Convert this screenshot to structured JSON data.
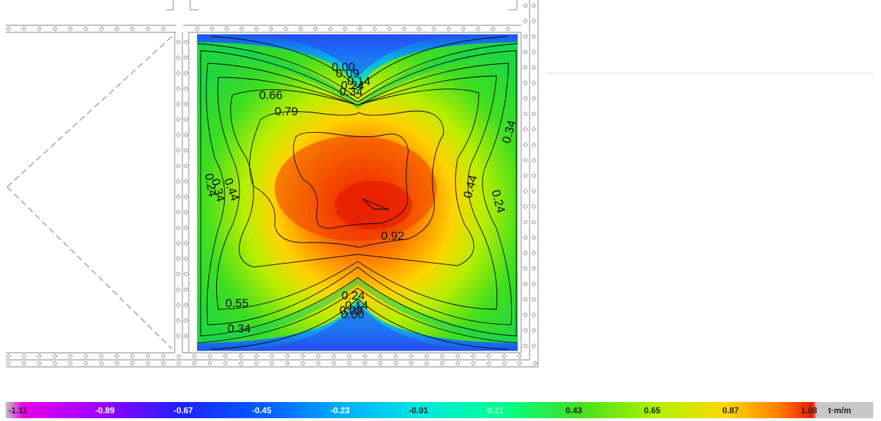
{
  "contour_labels": [
    {
      "id": "top-a",
      "text": "0.00"
    },
    {
      "id": "top-b",
      "text": "0.09"
    },
    {
      "id": "top-c",
      "text": "0.14"
    },
    {
      "id": "top-d",
      "text": "0.34"
    },
    {
      "id": "top-e",
      "text": "0.24"
    },
    {
      "id": "mid-066",
      "text": "0.66"
    },
    {
      "id": "mid-079",
      "text": "0.79"
    },
    {
      "id": "right-034",
      "text": "0.34"
    },
    {
      "id": "left-044",
      "text": "0.44"
    },
    {
      "id": "left-034",
      "text": "0.34"
    },
    {
      "id": "left-024",
      "text": "0.24"
    },
    {
      "id": "right-044",
      "text": "0.44"
    },
    {
      "id": "right-024",
      "text": "0.24"
    },
    {
      "id": "center-092",
      "text": "0.92"
    },
    {
      "id": "bot-024",
      "text": "0.24"
    },
    {
      "id": "bot-014",
      "text": "0.14"
    },
    {
      "id": "bot-009",
      "text": "0.09"
    },
    {
      "id": "bot-000",
      "text": "0.00"
    },
    {
      "id": "bl-055",
      "text": "0.55"
    },
    {
      "id": "bl-034",
      "text": "0.34"
    }
  ],
  "legend": {
    "ticks": [
      "-1.11",
      "-0.89",
      "-0.67",
      "-0.45",
      "-0.23",
      "-0.01",
      "0.21",
      "0.43",
      "0.65",
      "0.87",
      "1.08"
    ],
    "unit": "t·m/m",
    "colors": [
      "#c3c3c3",
      "#e800e8",
      "#6f00ff",
      "#0030ff",
      "#0090ff",
      "#00e8ff",
      "#00ffa8",
      "#30e030",
      "#a8f000",
      "#ffe000",
      "#ff9000",
      "#ff3000",
      "#e60000",
      "#c8c8c8"
    ]
  },
  "colors": {
    "background": "#ffffff",
    "frame_line": "#9a9a9a",
    "contour_line": "#000000"
  }
}
